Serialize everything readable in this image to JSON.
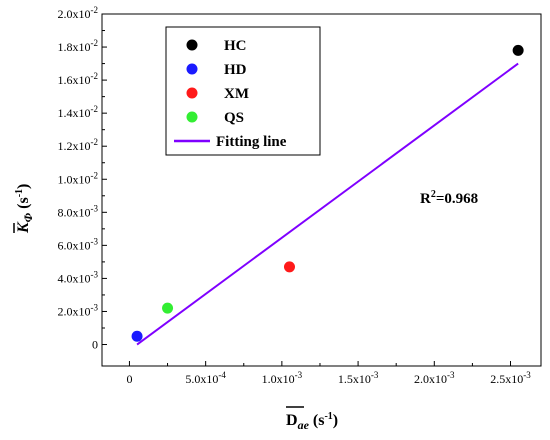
{
  "chart_data": {
    "type": "scatter",
    "xlabel": "D",
    "xlabel_sub": "ae",
    "xlabel_unit": " (s",
    "xlabel_exp": "-1",
    "xlabel_close": ")",
    "ylabel": "K",
    "ylabel_sub": "Φ",
    "ylabel_unit": " (s",
    "ylabel_exp": "-1",
    "ylabel_close": ")",
    "xlim": [
      -0.00018,
      0.0027
    ],
    "ylim": [
      -0.0013,
      0.02
    ],
    "x_ticks": [
      {
        "value": 0,
        "base": "0",
        "exp": ""
      },
      {
        "value": 0.0005,
        "base": "5.0x10",
        "exp": "-4"
      },
      {
        "value": 0.001,
        "base": "1.0x10",
        "exp": "-3"
      },
      {
        "value": 0.0015,
        "base": "1.5x10",
        "exp": "-3"
      },
      {
        "value": 0.002,
        "base": "2.0x10",
        "exp": "-3"
      },
      {
        "value": 0.0025,
        "base": "2.5x10",
        "exp": "-3"
      }
    ],
    "y_ticks": [
      {
        "value": 0,
        "base": "0",
        "exp": ""
      },
      {
        "value": 0.002,
        "base": "2.0x10",
        "exp": "-3"
      },
      {
        "value": 0.004,
        "base": "4.0x10",
        "exp": "-3"
      },
      {
        "value": 0.006,
        "base": "6.0x10",
        "exp": "-3"
      },
      {
        "value": 0.008,
        "base": "8.0x10",
        "exp": "-3"
      },
      {
        "value": 0.01,
        "base": "1.0x10",
        "exp": "-2"
      },
      {
        "value": 0.012,
        "base": "1.2x10",
        "exp": "-2"
      },
      {
        "value": 0.014,
        "base": "1.4x10",
        "exp": "-2"
      },
      {
        "value": 0.016,
        "base": "1.6x10",
        "exp": "-2"
      },
      {
        "value": 0.018,
        "base": "1.8x10",
        "exp": "-2"
      },
      {
        "value": 0.02,
        "base": "2.0x10",
        "exp": "-2"
      }
    ],
    "series": [
      {
        "name": "HC",
        "color": "#000000",
        "x": [
          0.00255
        ],
        "y": [
          0.0178
        ]
      },
      {
        "name": "HD",
        "color": "#1a1aff",
        "x": [
          5e-05
        ],
        "y": [
          0.0005
        ]
      },
      {
        "name": "XM",
        "color": "#ff1a1a",
        "x": [
          0.00105
        ],
        "y": [
          0.0047
        ]
      },
      {
        "name": "QS",
        "color": "#33ee33",
        "x": [
          0.00025
        ],
        "y": [
          0.0022
        ]
      }
    ],
    "fit_line": {
      "name": "Fitting line",
      "color": "#7f00ff",
      "x": [
        5e-05,
        0.00255
      ],
      "y": [
        0.0,
        0.017
      ]
    },
    "annotation": {
      "base": "R",
      "exp": "2",
      "rest": "=0.968"
    },
    "legend_position": "top-left",
    "grid": false
  }
}
